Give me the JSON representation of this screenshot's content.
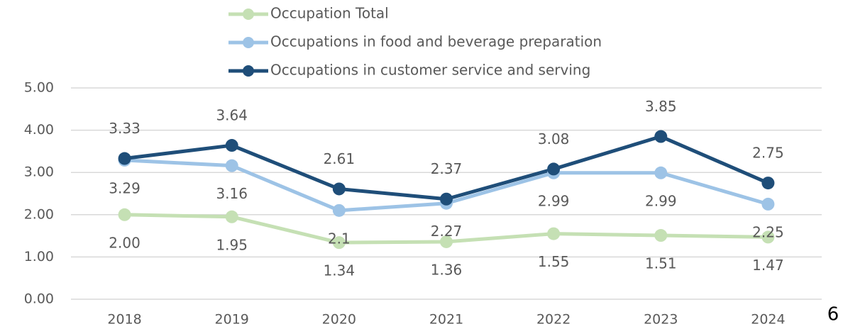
{
  "chart_data": {
    "type": "line",
    "categories": [
      "2018",
      "2019",
      "2020",
      "2021",
      "2022",
      "2023",
      "2024"
    ],
    "series": [
      {
        "name": "Occupation Total",
        "color": "#c5e0b4",
        "values": [
          2.0,
          1.95,
          1.34,
          1.36,
          1.55,
          1.51,
          1.47
        ],
        "value_labels": [
          "2.00",
          "1.95",
          "1.34",
          "1.36",
          "1.55",
          "1.51",
          "1.47"
        ]
      },
      {
        "name": "Occupations in food and beverage preparation",
        "color": "#9dc3e6",
        "values": [
          3.29,
          3.16,
          2.1,
          2.27,
          2.99,
          2.99,
          2.25
        ],
        "value_labels": [
          "3.29",
          "3.16",
          "2.1",
          "2.27",
          "2.99",
          "2.99",
          "2.25"
        ]
      },
      {
        "name": "Occupations in customer service and serving",
        "color": "#1f4e79",
        "values": [
          3.33,
          3.64,
          2.61,
          2.37,
          3.08,
          3.85,
          2.75
        ],
        "value_labels": [
          "3.33",
          "3.64",
          "2.61",
          "2.37",
          "3.08",
          "3.85",
          "2.75"
        ]
      }
    ],
    "ylim": [
      0,
      5
    ],
    "yticks": [
      {
        "value": 0,
        "label": "0.00"
      },
      {
        "value": 1,
        "label": "1.00"
      },
      {
        "value": 2,
        "label": "2.00"
      },
      {
        "value": 3,
        "label": "3.00"
      },
      {
        "value": 4,
        "label": "4.00"
      },
      {
        "value": 5,
        "label": "5.00"
      }
    ],
    "grid": true,
    "legend": "top"
  },
  "page_number": "6"
}
